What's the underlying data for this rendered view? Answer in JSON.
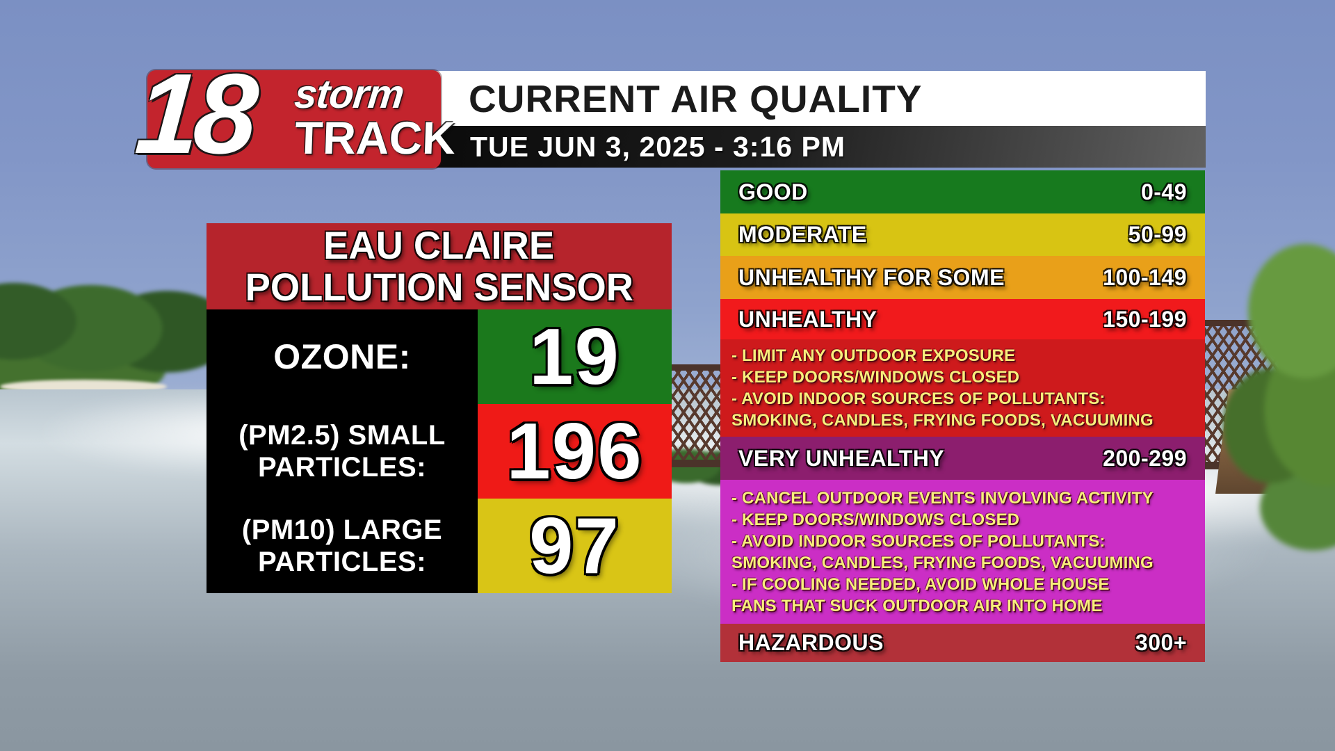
{
  "header": {
    "logo": {
      "number": "18",
      "word_top": "storm",
      "word_bottom": "TRACK",
      "bg_color": "#c3242d"
    },
    "title": "CURRENT AIR QUALITY",
    "datetime": "TUE JUN 3, 2025 - 3:16 PM"
  },
  "sensor": {
    "title_line1": "EAU CLAIRE",
    "title_line2": "POLLUTION SENSOR",
    "title_bg_color": "#b6242c",
    "label_bg_color": "#000000",
    "readings": [
      {
        "label_lines": [
          "OZONE:"
        ],
        "value": "19",
        "box_color": "#1b791c"
      },
      {
        "label_lines": [
          "(PM2.5) SMALL",
          "PARTICLES:"
        ],
        "value": "196",
        "box_color": "#ef1a17"
      },
      {
        "label_lines": [
          "(PM10) LARGE",
          "PARTICLES:"
        ],
        "value": "97",
        "box_color": "#d9c516"
      }
    ]
  },
  "scale": {
    "levels": [
      {
        "label": "GOOD",
        "range": "0-49",
        "color": "#177a1e"
      },
      {
        "label": "MODERATE",
        "range": "50-99",
        "color": "#d8c413"
      },
      {
        "label": "UNHEALTHY FOR SOME",
        "range": "100-149",
        "color": "#e9a019"
      },
      {
        "label": "UNHEALTHY",
        "range": "150-199",
        "color": "#f11a1c",
        "advice_color": "#ce1a1c",
        "advice": [
          "- LIMIT ANY OUTDOOR EXPOSURE",
          "- KEEP DOORS/WINDOWS CLOSED",
          "- AVOID INDOOR SOURCES OF POLLUTANTS:",
          "SMOKING, CANDLES, FRYING FOODS, VACUUMING"
        ]
      },
      {
        "label": "VERY UNHEALTHY",
        "range": "200-299",
        "color": "#8c1e6e",
        "advice_color": "#cb2ec5",
        "advice": [
          "- CANCEL OUTDOOR EVENTS INVOLVING ACTIVITY",
          "- KEEP DOORS/WINDOWS CLOSED",
          "- AVOID INDOOR SOURCES OF POLLUTANTS:",
          "SMOKING, CANDLES, FRYING FOODS, VACUUMING",
          "- IF COOLING NEEDED, AVOID WHOLE HOUSE",
          "FANS THAT SUCK OUTDOOR AIR INTO HOME"
        ]
      },
      {
        "label": "HAZARDOUS",
        "range": "300+",
        "color": "#b23139"
      }
    ]
  },
  "chart_data": {
    "type": "table",
    "title": "CURRENT AIR QUALITY",
    "timestamp": "TUE JUN 3, 2025 - 3:16 PM",
    "station": "EAU CLAIRE POLLUTION SENSOR",
    "readings": [
      {
        "pollutant": "OZONE",
        "value": 19,
        "category": "GOOD"
      },
      {
        "pollutant": "(PM2.5) SMALL PARTICLES",
        "value": 196,
        "category": "UNHEALTHY"
      },
      {
        "pollutant": "(PM10) LARGE PARTICLES",
        "value": 97,
        "category": "MODERATE"
      }
    ],
    "scale": [
      {
        "label": "GOOD",
        "range": "0-49"
      },
      {
        "label": "MODERATE",
        "range": "50-99"
      },
      {
        "label": "UNHEALTHY FOR SOME",
        "range": "100-149"
      },
      {
        "label": "UNHEALTHY",
        "range": "150-199"
      },
      {
        "label": "VERY UNHEALTHY",
        "range": "200-299"
      },
      {
        "label": "HAZARDOUS",
        "range": "300+"
      }
    ]
  }
}
